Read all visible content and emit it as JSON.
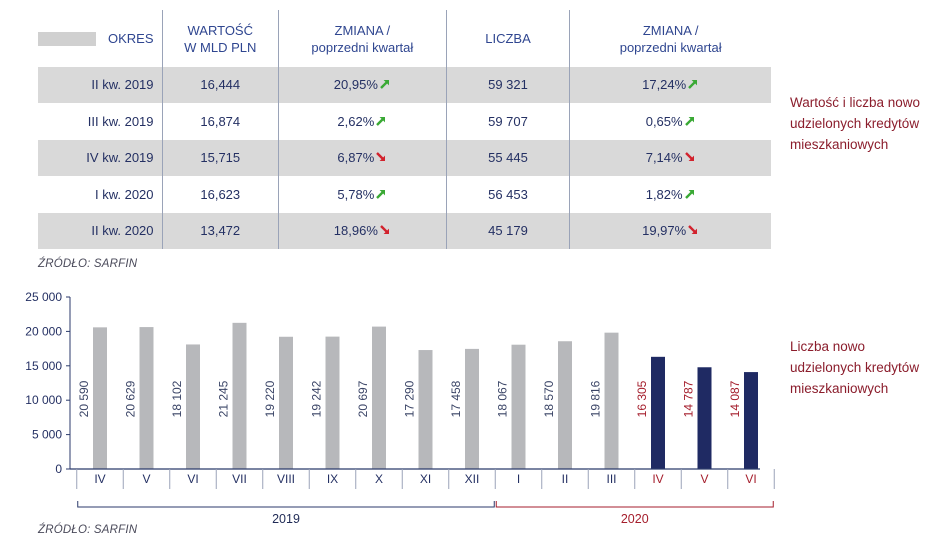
{
  "table": {
    "headers": {
      "okres": "OKRES",
      "wartosc_line1": "WARTOŚĆ",
      "wartosc_line2": "W MLD PLN",
      "zmiana1_line1": "ZMIANA /",
      "zmiana1_line2": "poprzedni kwartał",
      "liczba": "LICZBA",
      "zmiana2_line1": "ZMIANA /",
      "zmiana2_line2": "poprzedni kwartał"
    },
    "rows": [
      {
        "period": "II kw. 2019",
        "value": "16,444",
        "change1": "20,95%",
        "dir1": "up",
        "count": "59 321",
        "change2": "17,24%",
        "dir2": "up"
      },
      {
        "period": "III kw. 2019",
        "value": "16,874",
        "change1": "2,62%",
        "dir1": "up",
        "count": "59 707",
        "change2": "0,65%",
        "dir2": "up"
      },
      {
        "period": "IV kw. 2019",
        "value": "15,715",
        "change1": "6,87%",
        "dir1": "down",
        "count": "55 445",
        "change2": "7,14%",
        "dir2": "down"
      },
      {
        "period": "I kw. 2020",
        "value": "16,623",
        "change1": "5,78%",
        "dir1": "up",
        "count": "56 453",
        "change2": "1,82%",
        "dir2": "up"
      },
      {
        "period": "II kw. 2020",
        "value": "13,472",
        "change1": "18,96%",
        "dir1": "down",
        "count": "45 179",
        "change2": "19,97%",
        "dir2": "down"
      }
    ],
    "source": "ŹRÓDŁO: SARFIN"
  },
  "notes": {
    "table_note": "Wartość i liczba nowo udzielonych kredytów mieszkaniowych",
    "chart_note": "Liczba nowo udzielonych kredytów mieszkaniowych"
  },
  "colors": {
    "grey_bar": "#b7b8bb",
    "navy_bar": "#1f2a63",
    "grey_label": "#3a4466",
    "red_label": "#a51e2c",
    "arrow_up": "#3aa935",
    "arrow_down": "#d2222d"
  },
  "chart_data": {
    "type": "bar",
    "categories": [
      "IV",
      "V",
      "VI",
      "VII",
      "VIII",
      "IX",
      "X",
      "XI",
      "XII",
      "I",
      "II",
      "III",
      "IV",
      "V",
      "VI"
    ],
    "values": [
      20590,
      20629,
      18102,
      21245,
      19220,
      19242,
      20697,
      17290,
      17458,
      18067,
      18570,
      19816,
      16305,
      14787,
      14087
    ],
    "value_labels": [
      "20 590",
      "20 629",
      "18 102",
      "21 245",
      "19 220",
      "19 242",
      "20 697",
      "17 290",
      "17 458",
      "18 067",
      "18 570",
      "19 816",
      "16 305",
      "14 787",
      "14 087"
    ],
    "highlight": [
      false,
      false,
      false,
      false,
      false,
      false,
      false,
      false,
      false,
      false,
      false,
      false,
      true,
      true,
      true
    ],
    "yticks": [
      0,
      5000,
      10000,
      15000,
      20000,
      25000
    ],
    "ytick_labels": [
      "0",
      "5 000",
      "10 000",
      "15 000",
      "20 000",
      "25 000"
    ],
    "ylim": [
      0,
      25000
    ],
    "grid": false,
    "year_groups": [
      {
        "label": "2019",
        "from": 0,
        "to": 8
      },
      {
        "label": "2020",
        "from": 9,
        "to": 14
      }
    ],
    "source": "ŹRÓDŁO: SARFIN"
  }
}
